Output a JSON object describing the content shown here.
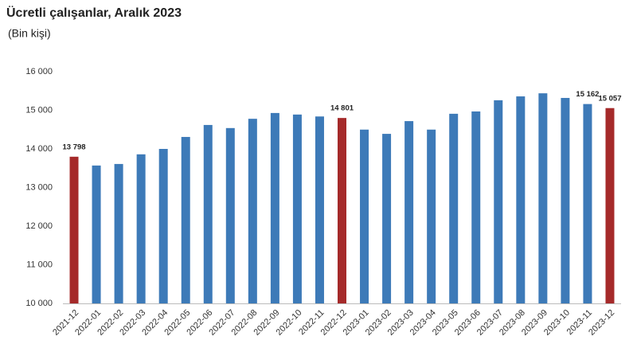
{
  "chart_data": {
    "type": "bar",
    "title": "Ücretli çalışanlar, Aralık 2023",
    "subtitle": "(Bin kişi)",
    "categories": [
      "2021-12",
      "2022-01",
      "2022-02",
      "2022-03",
      "2022-04",
      "2022-05",
      "2022-06",
      "2022-07",
      "2022-08",
      "2022-09",
      "2022-10",
      "2022-11",
      "2022-12",
      "2023-01",
      "2023-02",
      "2023-03",
      "2023-04",
      "2023-05",
      "2023-06",
      "2023-07",
      "2023-08",
      "2023-09",
      "2023-10",
      "2023-11",
      "2023-12"
    ],
    "values": [
      13798,
      13570,
      13610,
      13860,
      14000,
      14310,
      14620,
      14540,
      14780,
      14930,
      14890,
      14840,
      14801,
      14500,
      14390,
      14720,
      14500,
      14910,
      14970,
      15260,
      15360,
      15440,
      15320,
      15162,
      15057
    ],
    "value_labels": [
      "13 798",
      null,
      null,
      null,
      null,
      null,
      null,
      null,
      null,
      null,
      null,
      null,
      "14 801",
      null,
      null,
      null,
      null,
      null,
      null,
      null,
      null,
      null,
      null,
      "15 162",
      "15 057"
    ],
    "colors": [
      "#a52a2a",
      "#3d7ab8",
      "#3d7ab8",
      "#3d7ab8",
      "#3d7ab8",
      "#3d7ab8",
      "#3d7ab8",
      "#3d7ab8",
      "#3d7ab8",
      "#3d7ab8",
      "#3d7ab8",
      "#3d7ab8",
      "#a52a2a",
      "#3d7ab8",
      "#3d7ab8",
      "#3d7ab8",
      "#3d7ab8",
      "#3d7ab8",
      "#3d7ab8",
      "#3d7ab8",
      "#3d7ab8",
      "#3d7ab8",
      "#3d7ab8",
      "#3d7ab8",
      "#a52a2a"
    ],
    "ylim": [
      10000,
      16000
    ],
    "yticks": [
      {
        "value": 10000,
        "label": "10 000"
      },
      {
        "value": 11000,
        "label": "11 000"
      },
      {
        "value": 12000,
        "label": "12 000"
      },
      {
        "value": 13000,
        "label": "13 000"
      },
      {
        "value": 14000,
        "label": "14 000"
      },
      {
        "value": 15000,
        "label": "15 000"
      },
      {
        "value": 16000,
        "label": "16 000"
      }
    ],
    "grid": false
  }
}
